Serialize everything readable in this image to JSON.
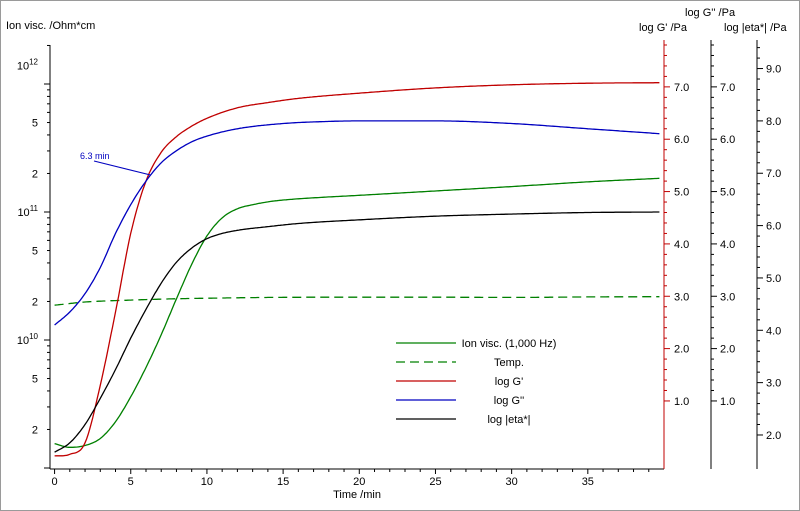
{
  "chart_data": {
    "type": "line",
    "xlabel": "Time /min",
    "x_ticks": [
      "0",
      "5",
      "10",
      "15",
      "20",
      "25",
      "30",
      "35"
    ],
    "xlim": [
      -0.3,
      40
    ],
    "axes": {
      "left": {
        "title": "Ion visc. /Ohm*cm",
        "scale": "log",
        "tick_labels": [
          {
            "value": 1400000000000.0,
            "base": "10",
            "exp": "12"
          },
          {
            "value": 500000000000.0,
            "base": "5",
            "exp": ""
          },
          {
            "value": 200000000000.0,
            "base": "2",
            "exp": ""
          },
          {
            "value": 100000000000.0,
            "base": "10",
            "exp": "11"
          },
          {
            "value": 50000000000.0,
            "base": "5",
            "exp": ""
          },
          {
            "value": 20000000000.0,
            "base": "2",
            "exp": ""
          },
          {
            "value": 10000000000.0,
            "base": "10",
            "exp": "10"
          },
          {
            "value": 5000000000.0,
            "base": "5",
            "exp": ""
          },
          {
            "value": 2000000000.0,
            "base": "2",
            "exp": ""
          }
        ],
        "color": "#000000"
      },
      "right_gp": {
        "title": "log G' /Pa",
        "ticks": [
          "1.0",
          "2.0",
          "3.0",
          "4.0",
          "5.0",
          "6.0",
          "7.0"
        ],
        "ylim": [
          -0.3,
          7.8
        ],
        "color": "#c00000"
      },
      "right_gpp": {
        "title": "log G'' /Pa",
        "ticks": [
          "1.0",
          "2.0",
          "3.0",
          "4.0",
          "5.0",
          "6.0",
          "7.0"
        ],
        "ylim": [
          -0.3,
          7.8
        ],
        "color": "#000000"
      },
      "right_eta": {
        "title": "log |eta*| /Pa",
        "ticks": [
          "2.0",
          "3.0",
          "4.0",
          "5.0",
          "6.0",
          "7.0",
          "8.0",
          "9.0"
        ],
        "ylim": [
          1.35,
          9.45
        ],
        "color": "#000000"
      }
    },
    "series": [
      {
        "name": "Ion visc. (1,000 Hz)",
        "axis": "left",
        "color": "#008000",
        "dash": "solid",
        "x": [
          0,
          1,
          2,
          3,
          4,
          5,
          6,
          7,
          8,
          9,
          10,
          11,
          12,
          13,
          14,
          15,
          17,
          20,
          25,
          30,
          35,
          40
        ],
        "y": [
          1550000000.0,
          1450000000.0,
          1500000000.0,
          1700000000.0,
          2300000000.0,
          3600000000.0,
          6100000000.0,
          11000000000.0,
          21000000000.0,
          39000000000.0,
          65000000000.0,
          90000000000.0,
          106000000000.0,
          114000000000.0,
          120000000000.0,
          124000000000.0,
          129000000000.0,
          135000000000.0,
          146000000000.0,
          158000000000.0,
          172000000000.0,
          184000000000.0
        ]
      },
      {
        "name": "Temp.",
        "axis": "left",
        "color": "#008000",
        "dash": "dashed",
        "x": [
          0,
          2,
          5,
          8,
          10,
          14,
          20,
          25,
          30,
          35,
          40
        ],
        "y": [
          18700000000.0,
          19800000000.0,
          20500000000.0,
          21000000000.0,
          21200000000.0,
          21500000000.0,
          21600000000.0,
          21600000000.0,
          21500000000.0,
          21700000000.0,
          21800000000.0
        ]
      },
      {
        "name": "log G'",
        "axis": "right_gp",
        "color": "#c00000",
        "dash": "solid",
        "x": [
          0,
          1,
          2,
          3,
          4,
          5,
          6,
          7,
          8,
          9,
          10,
          12,
          14,
          16,
          20,
          25,
          30,
          35,
          40
        ],
        "y": [
          -0.05,
          -0.02,
          0.2,
          1.3,
          2.7,
          4.2,
          5.2,
          5.75,
          6.05,
          6.25,
          6.4,
          6.6,
          6.7,
          6.78,
          6.88,
          6.98,
          7.04,
          7.07,
          7.08
        ]
      },
      {
        "name": "log G''",
        "axis": "right_gp",
        "color": "#0000c0",
        "dash": "solid",
        "x": [
          0,
          1,
          2,
          3,
          4,
          5,
          6,
          7,
          8,
          9,
          10,
          12,
          15,
          18,
          20,
          25,
          30,
          35,
          40
        ],
        "y": [
          2.45,
          2.7,
          3.05,
          3.55,
          4.2,
          4.75,
          5.2,
          5.55,
          5.78,
          5.95,
          6.06,
          6.2,
          6.3,
          6.34,
          6.35,
          6.35,
          6.3,
          6.2,
          6.1
        ]
      },
      {
        "name": "log |eta*|",
        "axis": "right_gp",
        "color": "#000000",
        "dash": "solid",
        "x": [
          0,
          1,
          2,
          3,
          4,
          5,
          6,
          7,
          8,
          9,
          10,
          11,
          12,
          14,
          16,
          20,
          25,
          30,
          35,
          40
        ],
        "y": [
          0.02,
          0.2,
          0.55,
          1.05,
          1.6,
          2.2,
          2.75,
          3.25,
          3.65,
          3.92,
          4.1,
          4.2,
          4.26,
          4.33,
          4.39,
          4.46,
          4.53,
          4.57,
          4.6,
          4.61
        ]
      }
    ],
    "annotation": {
      "text": "6.3 min",
      "color": "#0000c0",
      "x": 6.3
    },
    "legend": {
      "position": "bottom-right-inside",
      "entries": [
        {
          "label": "Ion visc. (1,000 Hz)",
          "color": "#008000",
          "dash": "solid"
        },
        {
          "label": "Temp.",
          "color": "#008000",
          "dash": "dashed"
        },
        {
          "label": "log G'",
          "color": "#c00000",
          "dash": "solid"
        },
        {
          "label": "log G''",
          "color": "#0000c0",
          "dash": "solid"
        },
        {
          "label": "log |eta*|",
          "color": "#000000",
          "dash": "solid"
        }
      ]
    }
  }
}
